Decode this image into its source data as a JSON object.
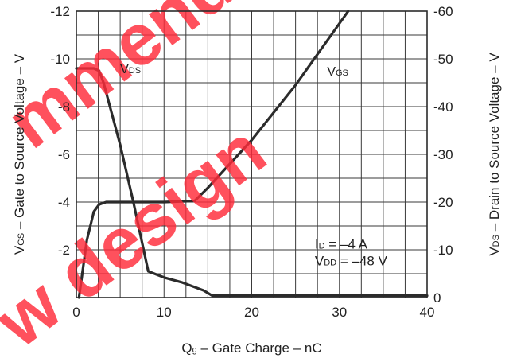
{
  "chart_data": {
    "type": "line",
    "xlabel": "Q",
    "xlabel_sub": "g",
    "xlabel_rest": " – Gate Charge – nC",
    "ylabel_left": "V",
    "ylabel_left_sub": "GS",
    "ylabel_left_rest": " – Gate to Source Voltage – V",
    "ylabel_right": "V",
    "ylabel_right_sub": "DS",
    "ylabel_right_rest": " – Drain to Source Voltage – V",
    "xlim": [
      0,
      40
    ],
    "ylim_left": [
      0,
      -12
    ],
    "ylim_right": [
      0,
      -60
    ],
    "x_ticks": [
      "0",
      "10",
      "20",
      "30",
      "40"
    ],
    "y_ticks_left": [
      "-2",
      "-4",
      "-6",
      "-8",
      "-10",
      "-12"
    ],
    "y_ticks_right": [
      "0",
      "-10",
      "-20",
      "-30",
      "-40",
      "-50",
      "-60"
    ],
    "grid": true,
    "series": [
      {
        "name": "V",
        "name_sub": "GS",
        "axis": "left",
        "x": [
          0.3,
          1.2,
          2.0,
          2.6,
          3.4,
          6,
          10,
          13.5,
          15,
          20,
          25,
          31
        ],
        "y": [
          0,
          -2.4,
          -3.6,
          -3.9,
          -4.0,
          -4.0,
          -4.0,
          -4.05,
          -4.6,
          -6.6,
          -8.9,
          -12
        ]
      },
      {
        "name": "V",
        "name_sub": "DS",
        "axis": "right",
        "x": [
          0,
          2,
          2.6,
          3.1,
          5,
          6.5,
          8.2,
          10,
          12,
          14.5,
          15.5,
          20,
          30,
          40
        ],
        "y": [
          -48,
          -48,
          -47.5,
          -45,
          -32,
          -20,
          -5.5,
          -4.2,
          -3.2,
          -1.5,
          -0.4,
          -0.4,
          -0.4,
          -0.4
        ]
      }
    ],
    "annotations": [
      {
        "main": "I",
        "sub": "D",
        "rest": " = –4 A"
      },
      {
        "main": "V",
        "sub": "DD",
        "rest": " = –48 V"
      }
    ],
    "watermark": [
      "mmend",
      "w design"
    ],
    "line_color": "#2b2b2b",
    "grid_color": "#3a3a3a",
    "watermark_color": "#ff2b3a"
  }
}
